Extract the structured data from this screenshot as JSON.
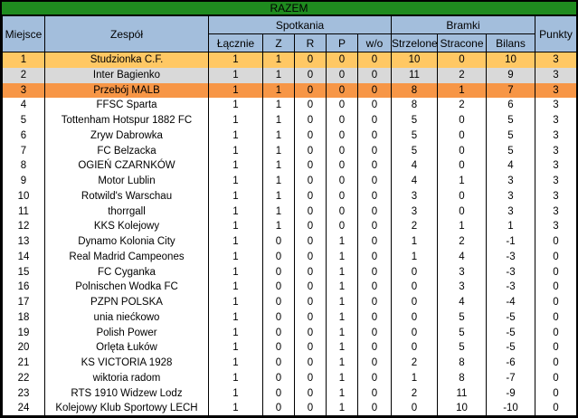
{
  "title": "RAZEM",
  "colors": {
    "title_bg": "#1F8B1F",
    "header_bg": "#A3BEDC",
    "gold": "#FFC864",
    "silver": "#D9D9D9",
    "bronze": "#F79646",
    "border": "#000000",
    "text": "#000000"
  },
  "table": {
    "header": {
      "place": "Miejsce",
      "team": "Zespół",
      "matches_group": "Spotkania",
      "goals_group": "Bramki",
      "points": "Punkty",
      "sub": [
        "Łącznie",
        "Z",
        "R",
        "P",
        "w/o",
        "Strzelone",
        "Stracone",
        "Bilans"
      ]
    }
  },
  "row_highlights": {
    "1": "gold",
    "2": "silver",
    "3": "bronze"
  },
  "chart_data": {
    "type": "table",
    "title": "RAZEM",
    "columns": [
      "Miejsce",
      "Zespół",
      "Łącznie",
      "Z",
      "R",
      "P",
      "w/o",
      "Strzelone",
      "Stracone",
      "Bilans",
      "Punkty"
    ],
    "column_groups": [
      {
        "label": "Spotkania",
        "span": [
          "Łącznie",
          "Z",
          "R",
          "P",
          "w/o"
        ]
      },
      {
        "label": "Bramki",
        "span": [
          "Strzelone",
          "Stracone",
          "Bilans"
        ]
      }
    ],
    "rows": [
      [
        1,
        "Studzionka C.F.",
        1,
        1,
        0,
        0,
        0,
        10,
        0,
        10,
        3
      ],
      [
        2,
        "Inter Bagienko",
        1,
        1,
        0,
        0,
        0,
        11,
        2,
        9,
        3
      ],
      [
        3,
        "Przebój MALB",
        1,
        1,
        0,
        0,
        0,
        8,
        1,
        7,
        3
      ],
      [
        4,
        "FFSC Sparta",
        1,
        1,
        0,
        0,
        0,
        8,
        2,
        6,
        3
      ],
      [
        5,
        "Tottenham Hotspur 1882 FC",
        1,
        1,
        0,
        0,
        0,
        5,
        0,
        5,
        3
      ],
      [
        6,
        "Zryw Dabrowka",
        1,
        1,
        0,
        0,
        0,
        5,
        0,
        5,
        3
      ],
      [
        7,
        "FC Belzacka",
        1,
        1,
        0,
        0,
        0,
        5,
        0,
        5,
        3
      ],
      [
        8,
        "OGIEŃ CZARNKÓW",
        1,
        1,
        0,
        0,
        0,
        4,
        0,
        4,
        3
      ],
      [
        9,
        "Motor Lublin",
        1,
        1,
        0,
        0,
        0,
        4,
        1,
        3,
        3
      ],
      [
        10,
        "Rotwild's Warschau",
        1,
        1,
        0,
        0,
        0,
        3,
        0,
        3,
        3
      ],
      [
        11,
        "thorrgall",
        1,
        1,
        0,
        0,
        0,
        3,
        0,
        3,
        3
      ],
      [
        12,
        "KKS Kolejowy",
        1,
        1,
        0,
        0,
        0,
        2,
        1,
        1,
        3
      ],
      [
        13,
        "Dynamo Kolonia City",
        1,
        0,
        0,
        1,
        0,
        1,
        2,
        -1,
        0
      ],
      [
        14,
        "Real Madrid Campeones",
        1,
        0,
        0,
        1,
        0,
        1,
        4,
        -3,
        0
      ],
      [
        15,
        "FC Cyganka",
        1,
        0,
        0,
        1,
        0,
        0,
        3,
        -3,
        0
      ],
      [
        16,
        "Polnischen Wodka FC",
        1,
        0,
        0,
        1,
        0,
        0,
        3,
        -3,
        0
      ],
      [
        17,
        "PZPN POLSKA",
        1,
        0,
        0,
        1,
        0,
        0,
        4,
        -4,
        0
      ],
      [
        18,
        "unia niećkowo",
        1,
        0,
        0,
        1,
        0,
        0,
        5,
        -5,
        0
      ],
      [
        19,
        "Polish Power",
        1,
        0,
        0,
        1,
        0,
        0,
        5,
        -5,
        0
      ],
      [
        20,
        "Orlęta Łuków",
        1,
        0,
        0,
        1,
        0,
        0,
        5,
        -5,
        0
      ],
      [
        21,
        "KS VICTORIA 1928",
        1,
        0,
        0,
        1,
        0,
        2,
        8,
        -6,
        0
      ],
      [
        22,
        "wiktoria radom",
        1,
        0,
        0,
        1,
        0,
        1,
        8,
        -7,
        0
      ],
      [
        23,
        "RTS 1910 Widzew Lodz",
        1,
        0,
        0,
        1,
        0,
        2,
        11,
        -9,
        0
      ],
      [
        24,
        "Kolejowy Klub Sportowy LECH",
        1,
        0,
        0,
        1,
        0,
        0,
        10,
        -10,
        0
      ]
    ]
  }
}
